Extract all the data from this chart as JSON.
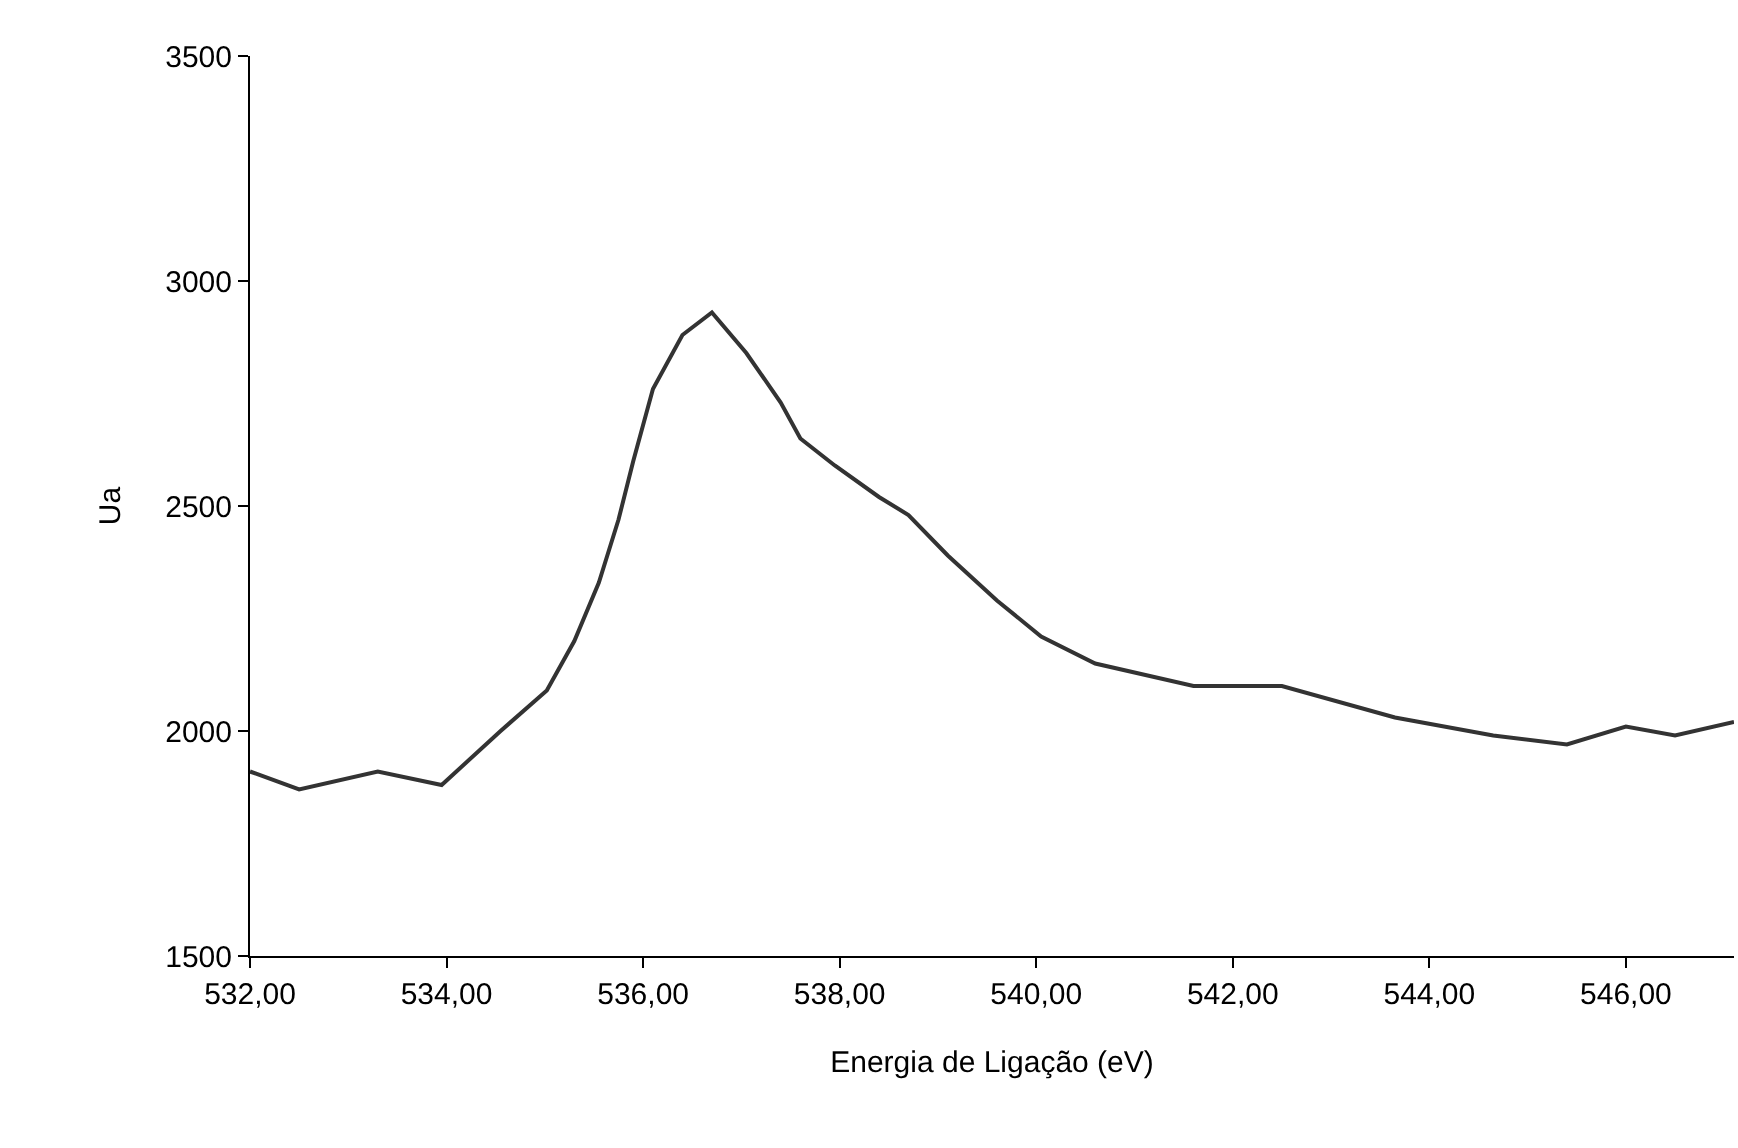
{
  "chart_data": {
    "type": "line",
    "xlabel": "Energia de Ligação (eV)",
    "ylabel": "Ua",
    "xlim": [
      532,
      547.1
    ],
    "ylim": [
      1500,
      3500
    ],
    "xticks": [
      {
        "value": 532,
        "label": "532,00"
      },
      {
        "value": 534,
        "label": "534,00"
      },
      {
        "value": 536,
        "label": "536,00"
      },
      {
        "value": 538,
        "label": "538,00"
      },
      {
        "value": 540,
        "label": "540,00"
      },
      {
        "value": 542,
        "label": "542,00"
      },
      {
        "value": 544,
        "label": "544,00"
      },
      {
        "value": 546,
        "label": "546,00"
      }
    ],
    "yticks": [
      1500,
      2000,
      2500,
      3000,
      3500
    ],
    "grid": false,
    "marker": "none",
    "line_style": "solid",
    "series": [
      {
        "color": "#333333",
        "x": [
          532,
          532.5,
          533.3,
          533.95,
          534.55,
          535.02,
          535.3,
          535.55,
          535.75,
          535.9,
          536.1,
          536.4,
          536.7,
          537.05,
          537.4,
          537.6,
          537.95,
          538.4,
          538.7,
          539.1,
          539.6,
          540.05,
          540.6,
          541.6,
          542.5,
          543.65,
          544.65,
          545.4,
          546,
          546.5,
          547.1
        ],
        "values": [
          1910,
          1870,
          1910,
          1880,
          2000,
          2090,
          2200,
          2330,
          2470,
          2600,
          2760,
          2880,
          2930,
          2840,
          2730,
          2650,
          2590,
          2520,
          2480,
          2390,
          2290,
          2210,
          2150,
          2100,
          2100,
          2030,
          1990,
          1970,
          2010,
          1990,
          2020
        ]
      }
    ]
  }
}
